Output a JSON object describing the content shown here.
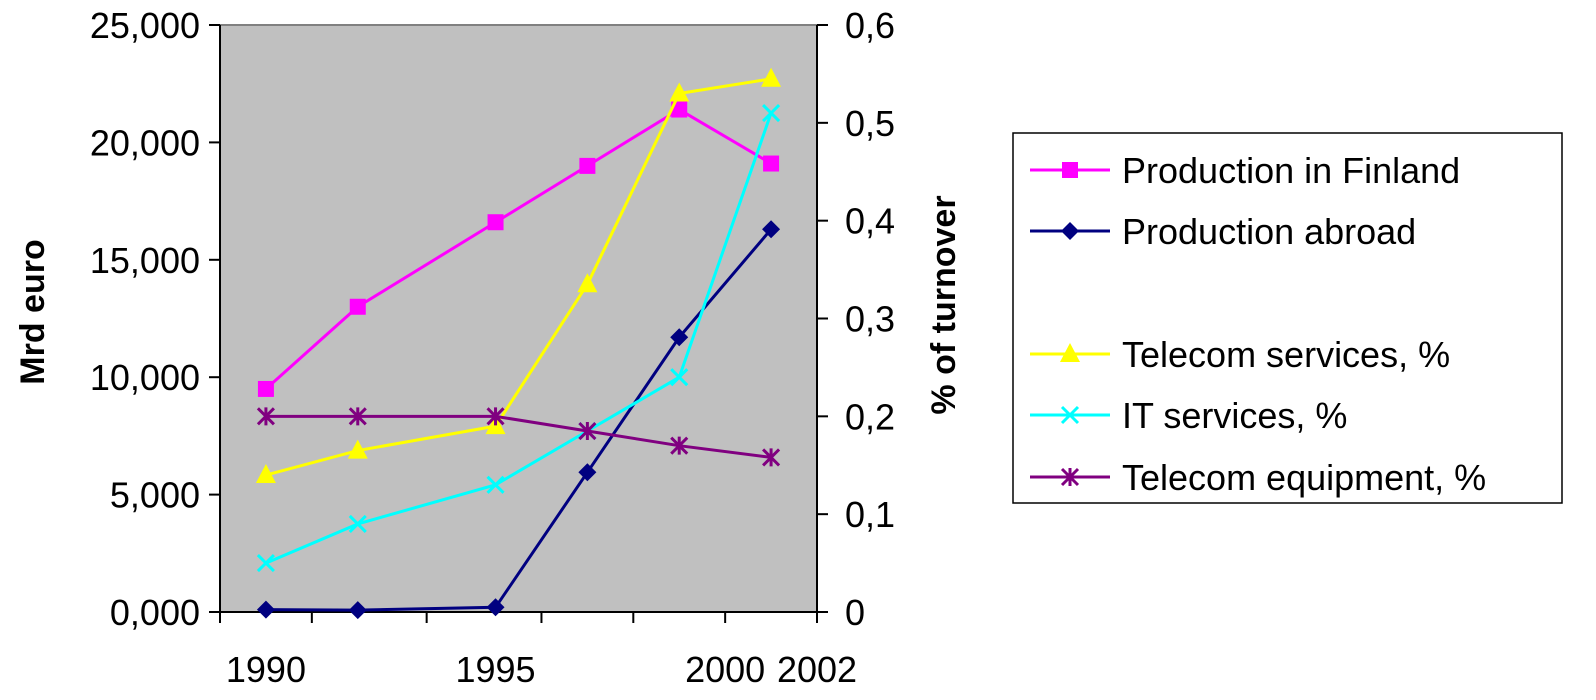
{
  "chart_data": {
    "type": "line",
    "x": [
      1990,
      1992,
      1995,
      1997,
      1999,
      2001
    ],
    "x_tick_labels": [
      "1990",
      "1995",
      "2000",
      "2002"
    ],
    "x_tick_label_values": [
      1990,
      1995,
      2000,
      2002
    ],
    "xlim": [
      1989,
      2002
    ],
    "y_left": {
      "label": "Mrd euro",
      "lim": [
        0,
        25000
      ],
      "ticks": [
        0,
        5000,
        10000,
        15000,
        20000,
        25000
      ],
      "tick_labels": [
        "0,000",
        "5,000",
        "10,000",
        "15,000",
        "20,000",
        "25,000"
      ]
    },
    "y_right": {
      "label": "% of turnover",
      "lim": [
        0,
        0.6
      ],
      "ticks": [
        0,
        0.1,
        0.2,
        0.3,
        0.4,
        0.5,
        0.6
      ],
      "tick_labels": [
        "0",
        "0,1",
        "0,2",
        "0,3",
        "0,4",
        "0,5",
        "0,6"
      ]
    },
    "plot_background": "#c0c0c0",
    "grid": false,
    "legend_position": "right",
    "series": [
      {
        "name": "Production in Finland",
        "axis": "left",
        "values": [
          9500,
          13000,
          16600,
          19000,
          21400,
          19100
        ],
        "color": "#ff00ff",
        "marker": "square"
      },
      {
        "name": "Production abroad",
        "axis": "left",
        "values": [
          100,
          80,
          200,
          5950,
          11700,
          16300
        ],
        "color": "#000080",
        "marker": "diamond"
      },
      {
        "name": "Telecom services, %",
        "axis": "right",
        "values": [
          0.14,
          0.165,
          0.19,
          0.335,
          0.53,
          0.545
        ],
        "color": "#ffff00",
        "marker": "triangle"
      },
      {
        "name": "IT services, %",
        "axis": "right",
        "values": [
          0.05,
          0.09,
          0.13,
          0.185,
          0.24,
          0.51
        ],
        "color": "#00ffff",
        "marker": "x"
      },
      {
        "name": "Telecom equipment, %",
        "axis": "right",
        "values": [
          0.2,
          0.2,
          0.2,
          0.185,
          0.17,
          0.158
        ],
        "color": "#800080",
        "marker": "star"
      }
    ]
  }
}
